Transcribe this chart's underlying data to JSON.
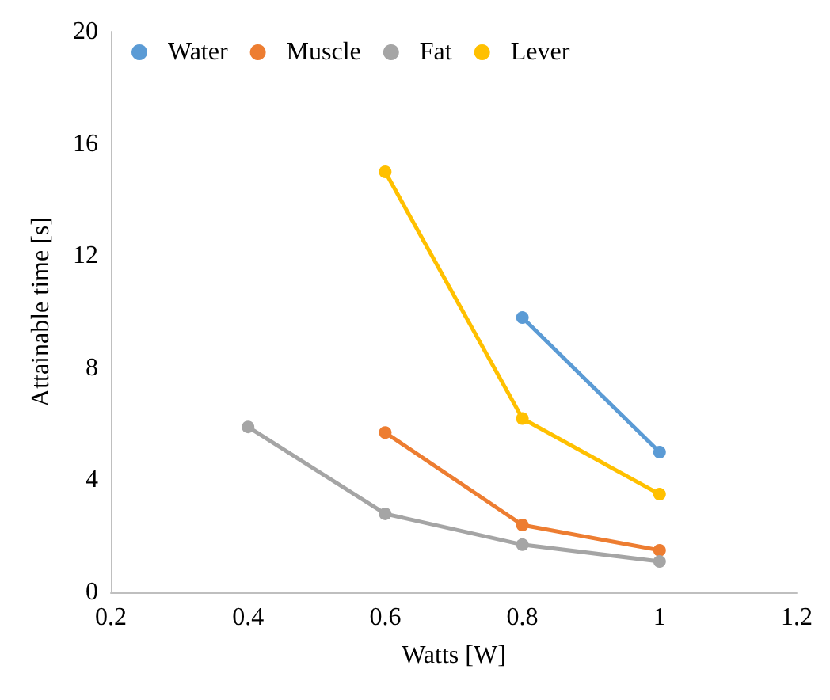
{
  "chart_data": {
    "type": "line",
    "xlabel": "Watts [W]",
    "ylabel": "Attainable time [s]",
    "xlim": [
      0.2,
      1.2
    ],
    "xticks": [
      0.2,
      0.4,
      0.6,
      0.8,
      1,
      1.2
    ],
    "ylim": [
      0,
      20
    ],
    "yticks": [
      0,
      4,
      8,
      12,
      16,
      20
    ],
    "grid": false,
    "legend": "top",
    "marker": "circle",
    "line_style": "solid",
    "series": [
      {
        "name": "Water",
        "color": "#5b9bd5",
        "x": [
          0.8,
          1
        ],
        "values": [
          9.8,
          5.0
        ]
      },
      {
        "name": "Muscle",
        "color": "#ed7d31",
        "x": [
          0.6,
          0.8,
          1
        ],
        "values": [
          5.7,
          2.4,
          1.5
        ]
      },
      {
        "name": "Fat",
        "color": "#a5a5a5",
        "x": [
          0.4,
          0.6,
          0.8,
          1
        ],
        "values": [
          5.9,
          2.8,
          1.7,
          1.1
        ]
      },
      {
        "name": "Lever",
        "color": "#ffc000",
        "x": [
          0.6,
          0.8,
          1
        ],
        "values": [
          15.0,
          6.2,
          3.5
        ]
      }
    ]
  }
}
